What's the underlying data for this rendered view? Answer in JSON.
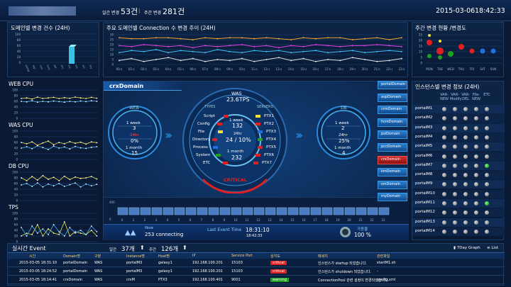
{
  "header": {
    "daily_label": "일간 변경",
    "daily_value": "53건",
    "sep": "|",
    "weekly_label": "주간 변경",
    "weekly_value": "281건",
    "date": "2015-03-06",
    "time": "18:42:33"
  },
  "panels": {
    "domain_change": "도메인별 변경 건수 (24H)",
    "trend": "주요 도메인별 Connection 수 변경 추이 (24H)",
    "weekly": "주간 변경 현황 /변경도",
    "instance": "인스턴스별 변경 정보 (24H)",
    "event": "실시간 Event"
  },
  "mini_charts": [
    {
      "title": "WEB CPU",
      "yticks": [
        "100",
        "80",
        "60",
        "40",
        "20",
        "0"
      ]
    },
    {
      "title": "WAS CPU",
      "yticks": [
        "100",
        "80",
        "60",
        "40",
        "20",
        "0"
      ]
    },
    {
      "title": "DB CPU",
      "yticks": [
        "100",
        "80",
        "60",
        "40",
        "20",
        "0"
      ]
    },
    {
      "title": "TPS",
      "yticks": [
        "100",
        "80",
        "60",
        "40",
        "20",
        "0"
      ]
    }
  ],
  "domain_chart": {
    "yticks": [
      "100",
      "80",
      "60",
      "40",
      "20",
      "0"
    ],
    "xlabels": [
      "portal",
      "asp",
      "crm",
      "hcm",
      "psi",
      "pcc",
      "crx",
      "km",
      "sm",
      "my"
    ]
  },
  "trend_chart": {
    "yticks": [
      "30",
      "25",
      "20",
      "15",
      "10",
      "5",
      "0"
    ],
    "xlabels": [
      "00시",
      "01시",
      "02시",
      "03시",
      "04시",
      "05시",
      "06시",
      "07시",
      "08시",
      "09시",
      "10시",
      "11시",
      "12시",
      "13시",
      "14시",
      "15시",
      "16시",
      "17시",
      "18시",
      "19시",
      "20시",
      "21시",
      "22시",
      "23시"
    ]
  },
  "weekly_chart": {
    "yticks": [
      "25",
      "20",
      "15",
      "10",
      "5",
      "0"
    ],
    "days": [
      "MON",
      "TUE",
      "WED",
      "THU",
      "FRI",
      "SAT",
      "SUN"
    ]
  },
  "center": {
    "domain": "crxDomain",
    "web": {
      "label": "WEB",
      "r1": "1 week",
      "v1": "3",
      "r2": "24hr",
      "v2": "0%",
      "r3": "1 month",
      "v3": "15"
    },
    "was": {
      "label": "WAS",
      "tps": "23.6TPS",
      "types_label": "TYPES",
      "servers_label": "SERVERS",
      "types": [
        "Script",
        "Config",
        "File",
        "Directory",
        "Process",
        "System",
        "ETC"
      ],
      "servers": [
        "PTX1",
        "PTX2",
        "PTX3",
        "PTX4",
        "PTX5",
        "PTX6",
        "PTX7"
      ],
      "week_label": "1 week",
      "week": "132",
      "hr_label": "24hr",
      "hr": "24 / 10%",
      "month_label": "1 month",
      "month": "232",
      "critical": "CRITICAL"
    },
    "db": {
      "label": "DB",
      "r1": "1 week",
      "v1": "2",
      "r2": "24hr",
      "v2": "25%",
      "r3": "1 month",
      "v3": "4"
    }
  },
  "domains": [
    "portalDomain",
    "aspDomain",
    "crmDomain",
    "hcmDomain",
    "psiDomain",
    "pccDomain",
    "crxDomain",
    "kmDomain",
    "smDomain",
    "myDomain"
  ],
  "progress": {
    "yticks": [
      "400",
      "0"
    ],
    "xlabels": [
      "0",
      "1",
      "2",
      "3",
      "4",
      "5",
      "6",
      "7",
      "8",
      "9",
      "10",
      "11",
      "12",
      "13",
      "14",
      "15",
      "16",
      "17",
      "18",
      "19",
      "20",
      "21",
      "22",
      "23"
    ]
  },
  "status": {
    "now_label": "Now",
    "connecting": "253 connecting",
    "last_label": "Last Event Time",
    "last_time": "18:31:10",
    "last_sub": "18:42:33",
    "rate_label": "가동율",
    "rate": "100 %"
  },
  "instance_table": {
    "headers": [
      "VAR-NEW",
      "VAR-Modify",
      "VAR-DEL",
      "File-NEW",
      "ETC"
    ],
    "rows": [
      {
        "name": "portalM1",
        "dots": [
          0,
          0,
          0,
          0,
          0
        ]
      },
      {
        "name": "portalM2",
        "dots": [
          0,
          0,
          0,
          0,
          0
        ]
      },
      {
        "name": "portalM3",
        "dots": [
          0,
          0,
          0,
          0,
          0
        ]
      },
      {
        "name": "portalM4",
        "dots": [
          0,
          0,
          0,
          0,
          0
        ]
      },
      {
        "name": "portalM5",
        "dots": [
          0,
          0,
          0,
          0,
          0
        ]
      },
      {
        "name": "portalM6",
        "dots": [
          0,
          0,
          0,
          0,
          0
        ]
      },
      {
        "name": "portalM7",
        "dots": [
          0,
          0,
          0,
          0,
          1
        ]
      },
      {
        "name": "portalM8",
        "dots": [
          0,
          0,
          0,
          0,
          0
        ]
      },
      {
        "name": "portalM9",
        "dots": [
          0,
          0,
          0,
          0,
          0
        ]
      },
      {
        "name": "portalM10",
        "dots": [
          0,
          0,
          0,
          0,
          0
        ]
      },
      {
        "name": "portalM11",
        "dots": [
          0,
          0,
          0,
          0,
          1
        ]
      },
      {
        "name": "portalM12",
        "dots": [
          0,
          0,
          0,
          0,
          0
        ]
      },
      {
        "name": "portalM13",
        "dots": [
          0,
          0,
          0,
          0,
          0
        ]
      },
      {
        "name": "portalM14",
        "dots": [
          0,
          0,
          0,
          0,
          0
        ]
      }
    ]
  },
  "event": {
    "daily_label": "일간",
    "daily": "37개",
    "weekly_label": "주간",
    "weekly": "126개",
    "btn_graph": "7Day Graph",
    "btn_list": "List",
    "headers": [
      "시간",
      "Domain명",
      "구분",
      "Instance명",
      "Host명",
      "IP",
      "Service Port",
      "심각도",
      "메세지",
      "관련파일"
    ],
    "rows": [
      [
        "2015-03-05 18:31:10",
        "portalDomain",
        "WAS",
        "portalM3",
        "galaxy1",
        "192.168.100.201",
        "15103",
        "critical",
        "인스턴스가 startup 되었습니다.",
        "startM1.sh"
      ],
      [
        "2015-03-05 18:24:52",
        "portalDomain",
        "WAS",
        "portalM3",
        "galaxy1",
        "192.168.100.201",
        "15103",
        "critical",
        "인스턴스가 shutdown 되었습니다.",
        "-"
      ],
      [
        "2015-03-05 18:14:41",
        "crxDomain",
        "WAS",
        "crxM",
        "PTX3",
        "192.168.100.401",
        "9001",
        "warning",
        "ConnectionPool 관련 설정이 변경되었습니다.",
        "config.xml"
      ]
    ]
  },
  "colors": {
    "accent": "#2a80d0",
    "critical": "#e02020",
    "warning": "#20a020"
  }
}
